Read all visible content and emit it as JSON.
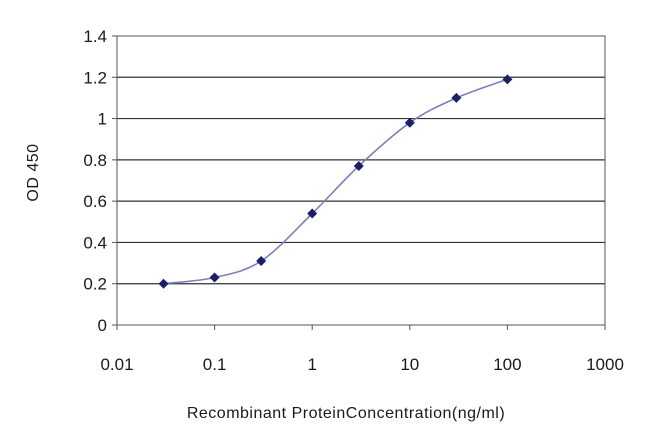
{
  "chart_data": {
    "type": "line",
    "title": "",
    "xlabel": "Recombinant ProteinConcentration(ng/ml)",
    "ylabel": "OD 450",
    "x_scale": "log",
    "xlim": [
      0.01,
      1000
    ],
    "ylim": [
      0,
      1.4
    ],
    "x_ticks": [
      "0.01",
      "0.1",
      "1",
      "10",
      "100",
      "1000"
    ],
    "y_ticks": [
      "0",
      "0.2",
      "0.4",
      "0.6",
      "0.8",
      "1",
      "1.2",
      "1.4"
    ],
    "grid": "horizontal",
    "series": [
      {
        "x": [
          0.03,
          0.1,
          0.3,
          1,
          3,
          10,
          30,
          100
        ],
        "y": [
          0.2,
          0.23,
          0.31,
          0.54,
          0.77,
          0.98,
          1.1,
          1.19
        ]
      }
    ],
    "colors": {
      "line": "#7b7fc0",
      "marker": "#1a1f66",
      "grid": "#333333"
    }
  }
}
